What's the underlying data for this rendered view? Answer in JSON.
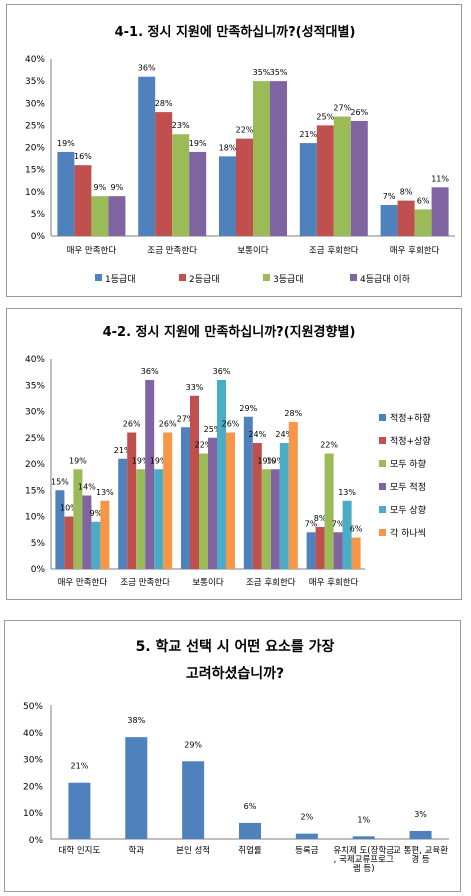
{
  "chart_data": [
    {
      "type": "bar",
      "title": "4-1. 정시 지원에 만족하십니까?(성적대별)",
      "categories": [
        "매우 만족한다",
        "조금 만족한다",
        "보통이다",
        "조금 후회한다",
        "매우 후회한다"
      ],
      "series": [
        {
          "name": "1등급대",
          "values": [
            19,
            36,
            18,
            21,
            7
          ]
        },
        {
          "name": "2등급대",
          "values": [
            16,
            28,
            22,
            25,
            8
          ]
        },
        {
          "name": "3등급대",
          "values": [
            9,
            23,
            35,
            27,
            6
          ]
        },
        {
          "name": "4등급대 이하",
          "values": [
            9,
            19,
            35,
            26,
            11
          ]
        }
      ],
      "colors": [
        "#4f81bd",
        "#c0504d",
        "#9bbb59",
        "#8064a2"
      ],
      "yticks": [
        "0%",
        "5%",
        "10%",
        "15%",
        "20%",
        "25%",
        "30%",
        "35%",
        "40%"
      ],
      "ylim": [
        0,
        40
      ],
      "grid": false,
      "legend": "bottom"
    },
    {
      "type": "bar",
      "title": "4-2. 정시 지원에 만족하십니까?(지원경향별)",
      "categories": [
        "매우 만족한다",
        "조금 만족한다",
        "보통이다",
        "조금 후회한다",
        "매우 후회한다"
      ],
      "series": [
        {
          "name": "적정+하향",
          "values": [
            15,
            21,
            27,
            29,
            7
          ]
        },
        {
          "name": "적정+상향",
          "values": [
            10,
            26,
            33,
            24,
            8
          ]
        },
        {
          "name": "모두 하향",
          "values": [
            19,
            19,
            22,
            19,
            22
          ]
        },
        {
          "name": "모두 적정",
          "values": [
            14,
            36,
            25,
            19,
            7
          ]
        },
        {
          "name": "모두 상향",
          "values": [
            9,
            19,
            36,
            24,
            13
          ]
        },
        {
          "name": "각 하나씩",
          "values": [
            13,
            26,
            26,
            28,
            6
          ]
        }
      ],
      "colors": [
        "#4f81bd",
        "#c0504d",
        "#9bbb59",
        "#8064a2",
        "#4bacc6",
        "#f79646"
      ],
      "yticks": [
        "0%",
        "5%",
        "10%",
        "15%",
        "20%",
        "25%",
        "30%",
        "35%",
        "40%"
      ],
      "ylim": [
        0,
        40
      ],
      "grid": false,
      "legend": "right"
    },
    {
      "type": "bar",
      "title": [
        "5. 학교 선택 시 어떤 요소를 가장",
        "고려하셨습니까?"
      ],
      "categories": [
        "대학 인지도",
        "학과",
        "본인 성적",
        "취업률",
        "등록금",
        "유치제 도(장학금, 국제교류프로그램 등)",
        "교 통편, 교육환경 등"
      ],
      "values": [
        21,
        38,
        29,
        6,
        2,
        1,
        3
      ],
      "colors": [
        "#4f81bd"
      ],
      "yticks": [
        "0%",
        "10%",
        "20%",
        "30%",
        "40%",
        "50%"
      ],
      "ylim": [
        0,
        50
      ],
      "grid": false
    }
  ]
}
